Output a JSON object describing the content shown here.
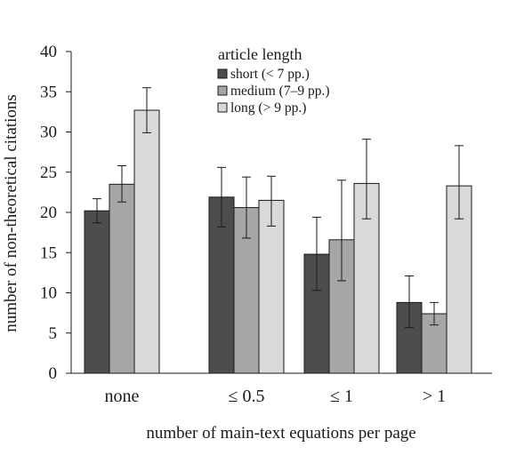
{
  "chart_data": {
    "type": "bar",
    "xlabel": "number of main-text equations per page",
    "ylabel": "number of non-theoretical citations",
    "ylim": [
      0,
      40
    ],
    "yticks": [
      0,
      5,
      10,
      15,
      20,
      25,
      30,
      35,
      40
    ],
    "categories": [
      "none",
      "≤ 0.5",
      "≤ 1",
      "> 1"
    ],
    "legend": {
      "title": "article length",
      "placement": "top-center"
    },
    "series": [
      {
        "name": "short (< 7 pp.)",
        "color": "#4d4d4d",
        "values": [
          20.2,
          21.9,
          14.8,
          8.8
        ],
        "error_low": [
          18.7,
          18.2,
          10.3,
          5.7
        ],
        "error_high": [
          21.7,
          25.6,
          19.4,
          12.1
        ]
      },
      {
        "name": "medium (7–9 pp.)",
        "color": "#a6a6a6",
        "values": [
          23.5,
          20.6,
          16.6,
          7.4
        ],
        "error_low": [
          21.3,
          16.8,
          11.5,
          6.0
        ],
        "error_high": [
          25.8,
          24.4,
          24.0,
          8.8
        ]
      },
      {
        "name": "long (> 9 pp.)",
        "color": "#d9d9d9",
        "values": [
          32.7,
          21.5,
          23.6,
          23.3
        ],
        "error_low": [
          29.9,
          18.3,
          19.2,
          19.2
        ],
        "error_high": [
          35.5,
          24.5,
          29.1,
          28.3
        ]
      }
    ],
    "grid": false
  }
}
